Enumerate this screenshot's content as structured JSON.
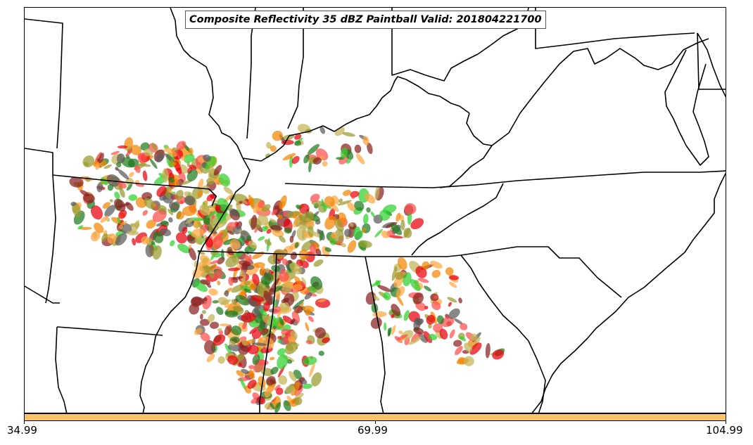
{
  "title": "Composite Reflectivity 35 dBZ Paintball Valid: 201804221700",
  "colorbar": {
    "color": "#ffc266",
    "ticks": [
      "34.99",
      "69.99",
      "104.99"
    ]
  },
  "palette": [
    "#e8000b",
    "#ff4d4d",
    "#f28500",
    "#ffa640",
    "#2ed12e",
    "#1f7a1f",
    "#9a9a2e",
    "#8b2020",
    "#5a5a5a",
    "#c4b454"
  ],
  "line_color": "#000000"
}
